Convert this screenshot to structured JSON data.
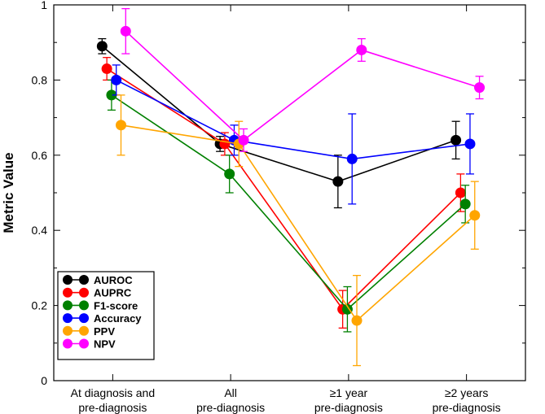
{
  "chart_data": {
    "type": "line",
    "title": "",
    "xlabel": "",
    "ylabel": "Metric Value",
    "ylim": [
      0,
      1
    ],
    "yticks": [
      "0",
      "0.2",
      "0.4",
      "0.6",
      "0.8",
      "1"
    ],
    "ytick_values": [
      0,
      0.2,
      0.4,
      0.6,
      0.8,
      1.0
    ],
    "grid": false,
    "legend_position": "bottom-left",
    "categories": [
      [
        "At diagnosis and",
        "pre-diagnosis"
      ],
      [
        "All",
        "pre-diagnosis"
      ],
      [
        "≥1 year",
        "pre-diagnosis"
      ],
      [
        "≥2 years",
        "pre-diagnosis"
      ]
    ],
    "series": [
      {
        "name": "AUROC",
        "color": "#000000",
        "offset": -0.09,
        "values": [
          0.89,
          0.63,
          0.53,
          0.64
        ],
        "errors": [
          [
            0.87,
            0.91
          ],
          [
            0.61,
            0.65
          ],
          [
            0.46,
            0.6
          ],
          [
            0.59,
            0.69
          ]
        ]
      },
      {
        "name": "AUPRC",
        "color": "#ff0000",
        "offset": -0.05,
        "values": [
          0.83,
          0.63,
          0.19,
          0.5
        ],
        "errors": [
          [
            0.8,
            0.86
          ],
          [
            0.6,
            0.66
          ],
          [
            0.14,
            0.24
          ],
          [
            0.45,
            0.55
          ]
        ]
      },
      {
        "name": "F1-score",
        "color": "#008000",
        "offset": -0.01,
        "values": [
          0.76,
          0.55,
          0.19,
          0.47
        ],
        "errors": [
          [
            0.72,
            0.8
          ],
          [
            0.5,
            0.6
          ],
          [
            0.13,
            0.25
          ],
          [
            0.42,
            0.52
          ]
        ]
      },
      {
        "name": "Accuracy",
        "color": "#0000ff",
        "offset": 0.03,
        "values": [
          0.8,
          0.64,
          0.59,
          0.63
        ],
        "errors": [
          [
            0.76,
            0.84
          ],
          [
            0.6,
            0.68
          ],
          [
            0.47,
            0.71
          ],
          [
            0.55,
            0.71
          ]
        ]
      },
      {
        "name": "PPV",
        "color": "#ffa500",
        "offset": 0.07,
        "values": [
          0.68,
          0.63,
          0.16,
          0.44
        ],
        "errors": [
          [
            0.6,
            0.76
          ],
          [
            0.57,
            0.69
          ],
          [
            0.04,
            0.28
          ],
          [
            0.35,
            0.53
          ]
        ]
      },
      {
        "name": "NPV",
        "color": "#ff00ff",
        "offset": 0.11,
        "values": [
          0.93,
          0.64,
          0.88,
          0.78
        ],
        "errors": [
          [
            0.87,
            0.99
          ],
          [
            0.61,
            0.67
          ],
          [
            0.85,
            0.91
          ],
          [
            0.75,
            0.81
          ]
        ]
      }
    ]
  }
}
